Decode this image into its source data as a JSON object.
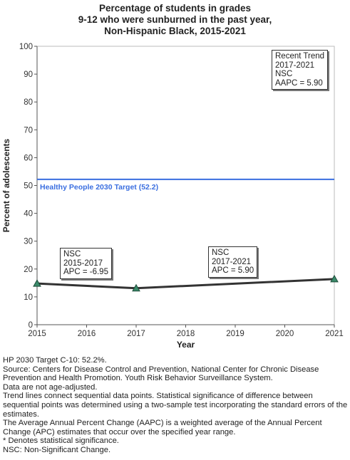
{
  "title_lines": [
    "Percentage of students in grades",
    "9-12 who were sunburned in the past year,",
    "Non-Hispanic Black,  2015-2021"
  ],
  "chart_data": {
    "type": "line",
    "xlabel": "Year",
    "ylabel": "Percent of adolescents",
    "xlim": [
      2015,
      2021
    ],
    "ylim": [
      0,
      100
    ],
    "x_ticks": [
      2015,
      2016,
      2017,
      2018,
      2019,
      2020,
      2021
    ],
    "y_ticks": [
      0,
      10,
      20,
      30,
      40,
      50,
      60,
      70,
      80,
      90,
      100
    ],
    "grid": false,
    "series": [
      {
        "points": [
          {
            "x": 2015,
            "y": 14.8
          },
          {
            "x": 2017,
            "y": 13.1
          },
          {
            "x": 2021,
            "y": 16.4
          }
        ],
        "color": "#333333",
        "marker_color": "#3a8a6a"
      }
    ],
    "target": {
      "value": 52.2,
      "label": "Healthy People 2030 Target (52.2)",
      "color": "#3a6ee0"
    },
    "annotations": [
      {
        "id": "seg1",
        "lines": [
          "NSC",
          "2015-2017",
          "APC = -6.95"
        ]
      },
      {
        "id": "seg2",
        "lines": [
          "NSC",
          "2017-2021",
          "APC =  5.90"
        ]
      },
      {
        "id": "recent",
        "lines": [
          "Recent Trend",
          "2017-2021",
          "NSC",
          "AAPC =  5.90"
        ]
      }
    ]
  },
  "notes": [
    "HP 2030 Target C-10: 52.2%.",
    "Source: Centers for Disease Control and Prevention, National Center for Chronic Disease Prevention and Health Promotion. Youth Risk Behavior Surveillance System.",
    "Data are not age-adjusted.",
    "Trend lines connect sequential data points. Statistical significance of difference between sequential points was determined using a two-sample test incorporating the standard errors of the estimates.",
    "The Average Annual Percent Change (AAPC) is a weighted average of the Annual Percent Change (APC) estimates that occur over the specified year range.",
    "* Denotes statistical significance.",
    "NSC: Non-Significant Change."
  ]
}
